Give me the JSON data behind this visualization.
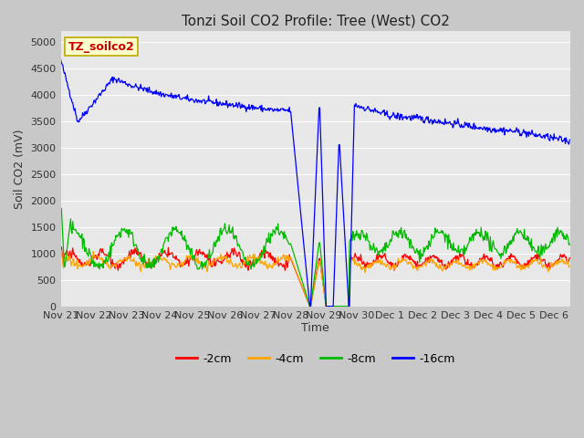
{
  "title": "Tonzi Soil CO2 Profile: Tree (West) CO2",
  "xlabel": "Time",
  "ylabel": "Soil CO2 (mV)",
  "watermark": "TZ_soilco2",
  "ylim": [
    0,
    5200
  ],
  "yticks": [
    0,
    500,
    1000,
    1500,
    2000,
    2500,
    3000,
    3500,
    4000,
    4500,
    5000
  ],
  "colors": {
    "red": "#ff0000",
    "orange": "#ffa500",
    "green": "#00bb00",
    "blue": "#0000ff"
  },
  "legend": [
    "-2cm",
    "-4cm",
    "-8cm",
    "-16cm"
  ],
  "fig_bg": "#c8c8c8",
  "plot_bg": "#e8e8e8",
  "grid_color": "#ffffff",
  "title_fontsize": 11,
  "axis_fontsize": 9,
  "tick_fontsize": 8
}
